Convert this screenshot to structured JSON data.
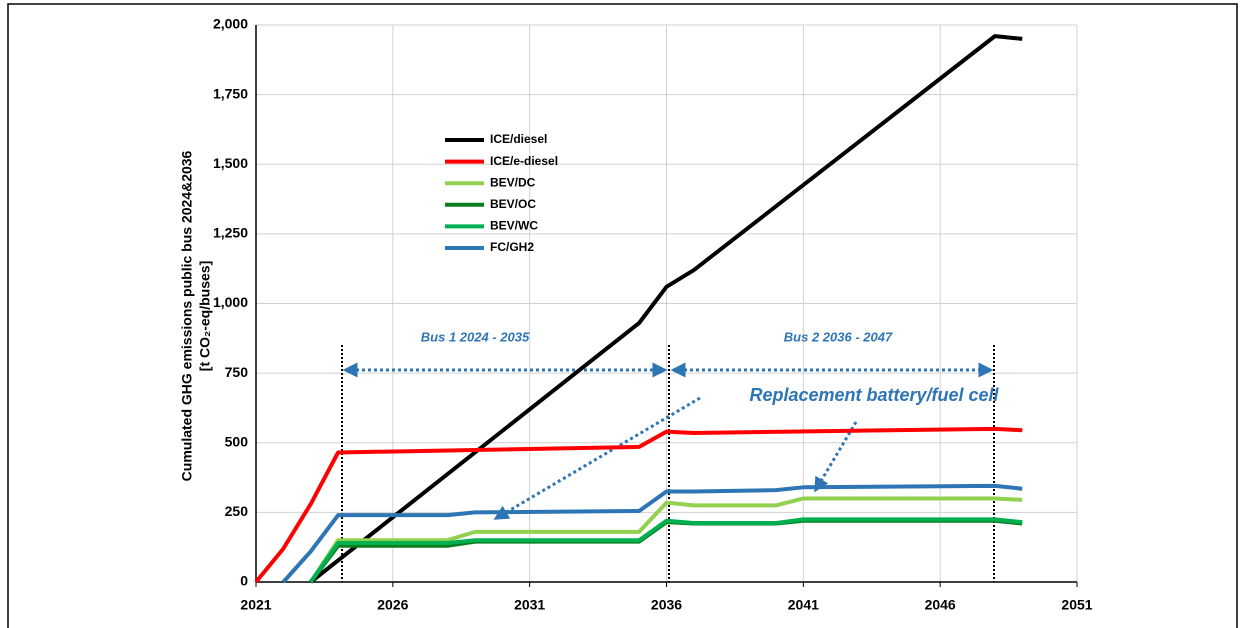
{
  "chart_data": {
    "type": "line",
    "ylabel": [
      "Cumulated GHG emissions public bus 2024&2036",
      "[t CO₂-eq/buses]"
    ],
    "annotations": [
      "Bus 1 2024 - 2035",
      "Bus 2 2036 - 2047",
      "Replacement battery/fuel cell"
    ],
    "xlim": [
      2021,
      2051
    ],
    "xticks": [
      2021,
      2026,
      2031,
      2036,
      2041,
      2046,
      2051
    ],
    "ylim": [
      0,
      2000
    ],
    "yticks": [
      0,
      250,
      500,
      750,
      {
        "value": 1000,
        "label": "1,000"
      },
      {
        "value": 1250,
        "label": "1,250"
      },
      {
        "value": 1500,
        "label": "1,500"
      },
      {
        "value": 1750,
        "label": "1,750"
      },
      {
        "value": 2000,
        "label": "2,000"
      }
    ],
    "grid": true,
    "series": [
      {
        "name": "ICE/diesel",
        "color": "#000000",
        "x": [
          2023,
          2035,
          2036,
          2037,
          2048,
          2049
        ],
        "values": [
          0,
          930,
          1060,
          1120,
          1960,
          1950
        ]
      },
      {
        "name": "ICE/e-diesel",
        "color": "#ff0000",
        "x": [
          2021,
          2022,
          2023,
          2024,
          2035,
          2036,
          2037,
          2048,
          2049
        ],
        "values": [
          0,
          120,
          280,
          465,
          485,
          540,
          535,
          550,
          545
        ]
      },
      {
        "name": "BEV/DC",
        "color": "#92d050",
        "x": [
          2023,
          2024,
          2028,
          2029,
          2035,
          2036,
          2037,
          2040,
          2041,
          2048,
          2049
        ],
        "values": [
          0,
          150,
          150,
          180,
          180,
          285,
          275,
          275,
          300,
          300,
          295
        ]
      },
      {
        "name": "BEV/OC",
        "color": "#0a7d1e",
        "x": [
          2023,
          2024,
          2028,
          2029,
          2035,
          2036,
          2037,
          2040,
          2041,
          2048,
          2049
        ],
        "values": [
          0,
          130,
          130,
          145,
          145,
          215,
          210,
          210,
          220,
          220,
          210
        ]
      },
      {
        "name": "BEV/WC",
        "color": "#00b050",
        "x": [
          2023,
          2024,
          2028,
          2029,
          2035,
          2036,
          2037,
          2040,
          2041,
          2048,
          2049
        ],
        "values": [
          0,
          140,
          140,
          150,
          150,
          220,
          212,
          212,
          225,
          225,
          215
        ]
      },
      {
        "name": "FC/GH2",
        "color": "#2e75b6",
        "x": [
          2022,
          2023,
          2024,
          2028,
          2029,
          2035,
          2036,
          2037,
          2040,
          2041,
          2048,
          2049
        ],
        "values": [
          0,
          110,
          240,
          240,
          250,
          255,
          325,
          325,
          330,
          340,
          345,
          335
        ]
      }
    ]
  }
}
